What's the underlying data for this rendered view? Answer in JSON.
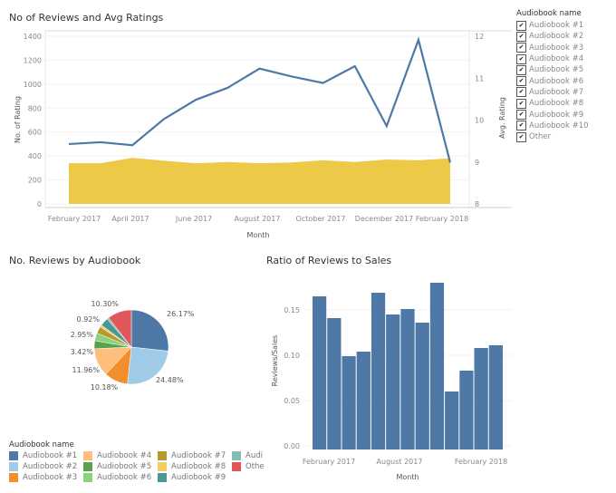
{
  "chart_data": [
    {
      "type": "line+area",
      "title": "No of Reviews and Avg Ratings",
      "xlabel": "Month",
      "ylabel": "No. of Rating",
      "y2label": "Avg. Rating",
      "ylim": [
        0,
        1400
      ],
      "y2lim": [
        8,
        12
      ],
      "yticks": [
        "0",
        "200",
        "400",
        "600",
        "800",
        "1000",
        "1200",
        "1400"
      ],
      "y2ticks": [
        "8",
        "9",
        "10",
        "11",
        "12"
      ],
      "xtick_labels": [
        "February 2017",
        "April 2017",
        "June 2017",
        "August 2017",
        "October 2017",
        "December 2017",
        "February 2018"
      ],
      "x": [
        "2017-02",
        "2017-03",
        "2017-04",
        "2017-05",
        "2017-06",
        "2017-07",
        "2017-08",
        "2017-09",
        "2017-10",
        "2017-11",
        "2017-12",
        "2018-01",
        "2018-02"
      ],
      "series": [
        {
          "kind": "line",
          "axis": "left",
          "color": "#4e79a7",
          "values": [
            500,
            515,
            490,
            710,
            870,
            970,
            1130,
            1065,
            1010,
            1150,
            650,
            1370,
            345
          ]
        },
        {
          "kind": "area",
          "axis": "right",
          "color": "#edc948",
          "values": [
            8.97,
            8.97,
            9.1,
            9.03,
            8.97,
            9.0,
            8.97,
            8.99,
            9.04,
            9.0,
            9.06,
            9.04,
            9.09
          ]
        }
      ],
      "grid": true
    },
    {
      "type": "pie",
      "title": "No. Reviews by Audiobook",
      "slices": [
        {
          "name": "Audiobook #1",
          "value": 26.17,
          "label": "26.17%",
          "color": "#4e79a7"
        },
        {
          "name": "Audiobook #2",
          "value": 24.48,
          "label": "24.48%",
          "color": "#a0cbe8"
        },
        {
          "name": "Audiobook #3",
          "value": 10.18,
          "label": "10.18%",
          "color": "#f28e2b"
        },
        {
          "name": "Audiobook #4",
          "value": 11.96,
          "label": "11.96%",
          "color": "#ffbe7d"
        },
        {
          "name": "Audiobook #5",
          "value": 3.42,
          "label": "3.42%",
          "color": "#59a14f"
        },
        {
          "name": "Audiobook #6",
          "value": 3.3,
          "label": "",
          "color": "#8cd17d"
        },
        {
          "name": "Audiobook #7",
          "value": 2.95,
          "label": "2.95%",
          "color": "#b6992d"
        },
        {
          "name": "Audiobook #8",
          "value": 0.92,
          "label": "0.92%",
          "color": "#f1ce63"
        },
        {
          "name": "Audiobook #9",
          "value": 3.5,
          "label": "",
          "color": "#499894"
        },
        {
          "name": "Audiobook #10",
          "value": 0.8,
          "label": "",
          "color": "#86bcb6"
        },
        {
          "name": "Other",
          "value": 10.3,
          "label": "10.30%",
          "color": "#e15759"
        }
      ],
      "legend_title": "Audiobook name",
      "legend_labels": [
        "Audiobook #1",
        "Audiobook #2",
        "Audiobook #3",
        "Audiobook #4",
        "Audiobook #5",
        "Audiobook #6",
        "Audiobook #7",
        "Audiobook #8",
        "Audiobook #9",
        "Audi",
        "Othe"
      ],
      "legend_placement": "bottom-left"
    },
    {
      "type": "bar",
      "title": "Ratio of Reviews to Sales",
      "xlabel": "Month",
      "ylabel": "Reviews/Sales",
      "ylim": [
        0,
        0.19
      ],
      "yticks": [
        "0.00",
        "0.05",
        "0.10",
        "0.15"
      ],
      "xtick_labels": [
        "February 2017",
        "August 2017",
        "February 2018"
      ],
      "categories": [
        "2017-02",
        "2017-03",
        "2017-04",
        "2017-05",
        "2017-06",
        "2017-07",
        "2017-08",
        "2017-09",
        "2017-10",
        "2017-11",
        "2017-12",
        "2018-01",
        "2018-02"
      ],
      "values": [
        0.165,
        0.141,
        0.099,
        0.104,
        0.169,
        0.145,
        0.151,
        0.136,
        0.18,
        0.06,
        0.083,
        0.108,
        0.111
      ],
      "color": "#4e79a7",
      "grid": true
    }
  ],
  "filter": {
    "title": "Audiobook name",
    "items": [
      "Audiobook #1",
      "Audiobook #2",
      "Audiobook #3",
      "Audiobook #4",
      "Audiobook #5",
      "Audiobook #6",
      "Audiobook #7",
      "Audiobook #8",
      "Audiobook #9",
      "Audiobook #10",
      "Other"
    ],
    "checked": true,
    "check_glyph": "✔"
  }
}
